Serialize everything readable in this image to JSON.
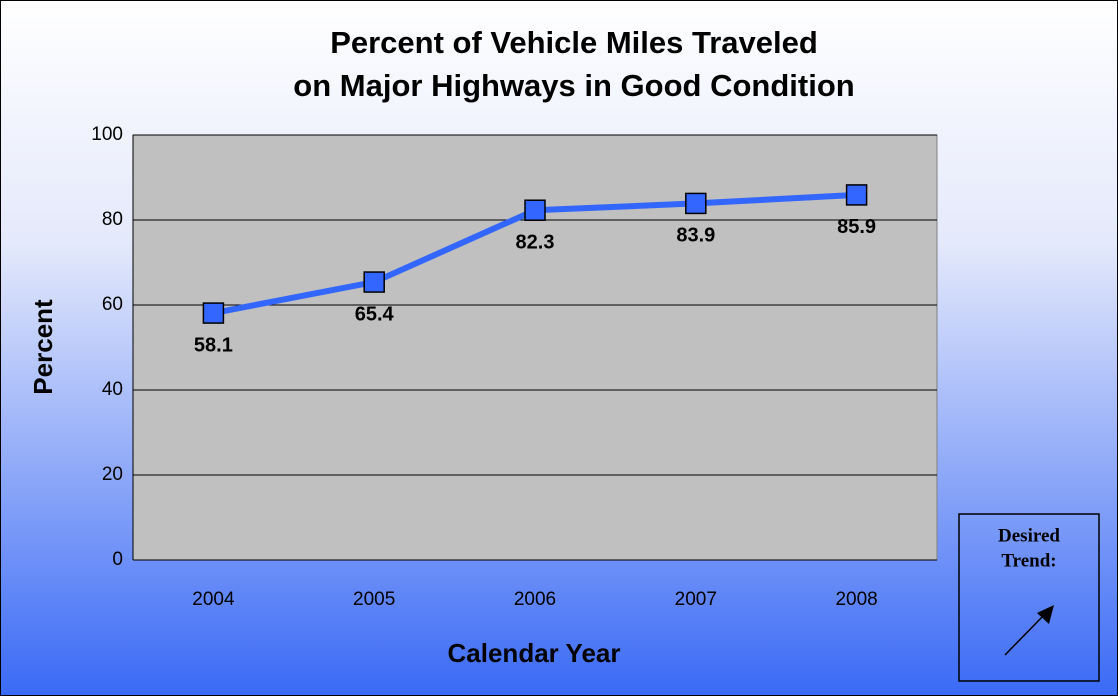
{
  "chart_data": {
    "type": "line",
    "title": [
      "Percent of Vehicle Miles Traveled",
      "on Major Highways in Good Condition"
    ],
    "x_label": "Calendar Year",
    "y_label": "Percent",
    "categories": [
      "2004",
      "2005",
      "2006",
      "2007",
      "2008"
    ],
    "series": [
      {
        "name": "Percent",
        "color": "#3366ff",
        "values": [
          58.1,
          65.4,
          82.3,
          83.9,
          85.9
        ]
      }
    ],
    "ylim": [
      0,
      100
    ],
    "yticks": [
      0,
      20,
      40,
      60,
      80,
      100
    ],
    "grid": true,
    "annotation": [
      "Desired",
      "Trend:"
    ]
  }
}
